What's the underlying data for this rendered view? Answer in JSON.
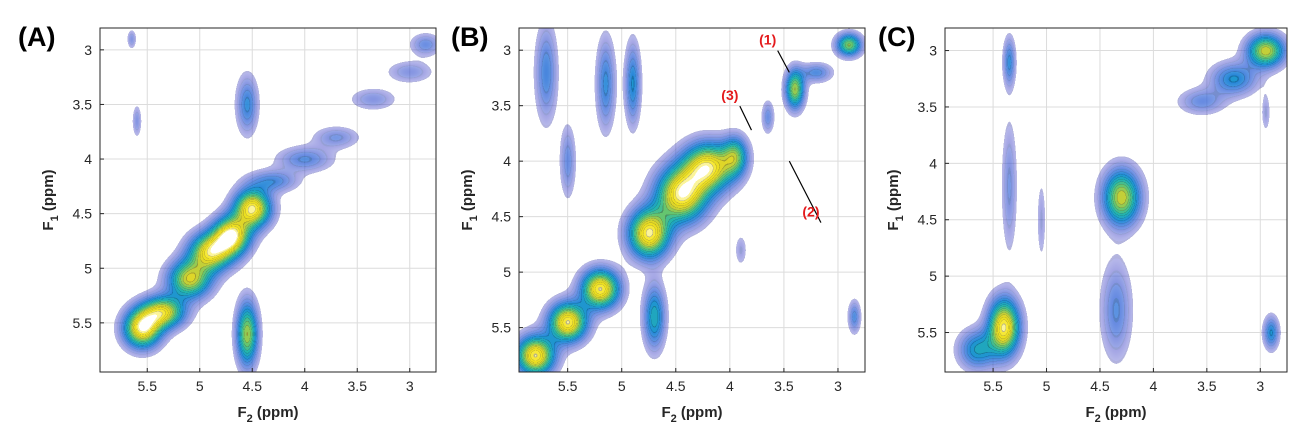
{
  "colors": {
    "ink": "#262626",
    "grid": "#dcdcdc",
    "annotation": "#e41a1c",
    "colormap": [
      "#3b3fc6",
      "#2a62d8",
      "#1f8fd6",
      "#20b3b0",
      "#6ac66b",
      "#d7d12c",
      "#f5e51b",
      "#ffffff"
    ]
  },
  "chart_data": [
    {
      "type": "heatmap",
      "panel_label": "(A)",
      "xlabel": "F2 (ppm)",
      "ylabel": "F1 (ppm)",
      "axis_symbol": "F",
      "axis_unit": "(ppm)",
      "x_subscript": "2",
      "y_subscript": "1",
      "xlim": [
        5.95,
        2.75
      ],
      "ylim": [
        2.8,
        5.95
      ],
      "x_reversed": true,
      "y_reversed": true,
      "xticks": [
        5.5,
        5,
        4.5,
        4,
        3.5,
        3
      ],
      "xtick_labels": [
        "5.5",
        "5",
        "4.5",
        "4",
        "3.5",
        "3"
      ],
      "yticks": [
        3,
        3.5,
        4,
        4.5,
        5,
        5.5
      ],
      "ytick_labels": [
        "3",
        "3.5",
        "4",
        "4.5",
        "5",
        "5.5"
      ],
      "grid": true,
      "peaks": [
        {
          "x": 5.55,
          "y": 5.55,
          "sx": 0.12,
          "sy": 0.12,
          "a": 1.0
        },
        {
          "x": 5.35,
          "y": 5.4,
          "sx": 0.14,
          "sy": 0.1,
          "a": 0.85
        },
        {
          "x": 5.1,
          "y": 5.1,
          "sx": 0.14,
          "sy": 0.12,
          "a": 0.8
        },
        {
          "x": 4.9,
          "y": 4.85,
          "sx": 0.14,
          "sy": 0.12,
          "a": 0.9
        },
        {
          "x": 4.7,
          "y": 4.7,
          "sx": 0.12,
          "sy": 0.12,
          "a": 1.0
        },
        {
          "x": 4.5,
          "y": 4.45,
          "sx": 0.12,
          "sy": 0.12,
          "a": 1.0
        },
        {
          "x": 4.55,
          "y": 5.6,
          "sx": 0.07,
          "sy": 0.2,
          "a": 0.75
        },
        {
          "x": 4.55,
          "y": 3.5,
          "sx": 0.07,
          "sy": 0.18,
          "a": 0.35
        },
        {
          "x": 4.3,
          "y": 4.2,
          "sx": 0.16,
          "sy": 0.07,
          "a": 0.3
        },
        {
          "x": 4.0,
          "y": 4.0,
          "sx": 0.18,
          "sy": 0.08,
          "a": 0.28
        },
        {
          "x": 3.7,
          "y": 3.8,
          "sx": 0.15,
          "sy": 0.07,
          "a": 0.22
        },
        {
          "x": 3.35,
          "y": 3.45,
          "sx": 0.15,
          "sy": 0.07,
          "a": 0.2
        },
        {
          "x": 3.0,
          "y": 3.2,
          "sx": 0.15,
          "sy": 0.07,
          "a": 0.2
        },
        {
          "x": 2.85,
          "y": 2.95,
          "sx": 0.1,
          "sy": 0.07,
          "a": 0.25
        },
        {
          "x": 5.6,
          "y": 3.65,
          "sx": 0.03,
          "sy": 0.1,
          "a": 0.2
        },
        {
          "x": 5.65,
          "y": 2.9,
          "sx": 0.03,
          "sy": 0.06,
          "a": 0.2
        }
      ]
    },
    {
      "type": "heatmap",
      "panel_label": "(B)",
      "xlabel": "F2 (ppm)",
      "ylabel": "F1 (ppm)",
      "axis_symbol": "F",
      "axis_unit": "(ppm)",
      "x_subscript": "2",
      "y_subscript": "1",
      "xlim": [
        5.95,
        2.75
      ],
      "ylim": [
        2.8,
        5.9
      ],
      "x_reversed": true,
      "y_reversed": true,
      "xticks": [
        5.5,
        5,
        4.5,
        4,
        3.5,
        3
      ],
      "xtick_labels": [
        "5.5",
        "5",
        "4.5",
        "4",
        "3.5",
        "3"
      ],
      "yticks": [
        3,
        3.5,
        4,
        4.5,
        5,
        5.5
      ],
      "ytick_labels": [
        "3",
        "3.5",
        "4",
        "4.5",
        "5",
        "5.5"
      ],
      "grid": true,
      "annotations": [
        {
          "text": "(1)",
          "tx": 3.65,
          "ty": 2.95,
          "ax": 3.45,
          "ay": 3.2
        },
        {
          "text": "(3)",
          "tx": 4.0,
          "ty": 3.45,
          "ax": 3.8,
          "ay": 3.72
        },
        {
          "text": "(2)",
          "tx": 3.25,
          "ty": 4.5,
          "ax": 3.45,
          "ay": 4.0
        }
      ],
      "peaks": [
        {
          "x": 5.8,
          "y": 5.75,
          "sx": 0.12,
          "sy": 0.12,
          "a": 1.0
        },
        {
          "x": 5.5,
          "y": 5.45,
          "sx": 0.12,
          "sy": 0.12,
          "a": 1.0
        },
        {
          "x": 5.2,
          "y": 5.15,
          "sx": 0.12,
          "sy": 0.12,
          "a": 1.0
        },
        {
          "x": 4.75,
          "y": 4.65,
          "sx": 0.13,
          "sy": 0.15,
          "a": 1.0
        },
        {
          "x": 4.45,
          "y": 4.3,
          "sx": 0.16,
          "sy": 0.17,
          "a": 1.0
        },
        {
          "x": 4.2,
          "y": 4.05,
          "sx": 0.16,
          "sy": 0.15,
          "a": 0.95
        },
        {
          "x": 3.95,
          "y": 3.95,
          "sx": 0.08,
          "sy": 0.12,
          "a": 0.55
        },
        {
          "x": 5.7,
          "y": 3.2,
          "sx": 0.07,
          "sy": 0.3,
          "a": 0.32
        },
        {
          "x": 5.15,
          "y": 3.3,
          "sx": 0.06,
          "sy": 0.28,
          "a": 0.35
        },
        {
          "x": 4.9,
          "y": 3.3,
          "sx": 0.05,
          "sy": 0.25,
          "a": 0.4
        },
        {
          "x": 4.7,
          "y": 5.4,
          "sx": 0.07,
          "sy": 0.2,
          "a": 0.5
        },
        {
          "x": 5.5,
          "y": 4.0,
          "sx": 0.05,
          "sy": 0.22,
          "a": 0.25
        },
        {
          "x": 3.4,
          "y": 3.35,
          "sx": 0.06,
          "sy": 0.12,
          "a": 0.75
        },
        {
          "x": 3.2,
          "y": 3.2,
          "sx": 0.1,
          "sy": 0.06,
          "a": 0.3
        },
        {
          "x": 2.9,
          "y": 2.95,
          "sx": 0.08,
          "sy": 0.07,
          "a": 0.7
        },
        {
          "x": 3.65,
          "y": 3.6,
          "sx": 0.04,
          "sy": 0.1,
          "a": 0.25
        },
        {
          "x": 2.85,
          "y": 5.4,
          "sx": 0.04,
          "sy": 0.1,
          "a": 0.3
        },
        {
          "x": 3.9,
          "y": 4.8,
          "sx": 0.04,
          "sy": 0.1,
          "a": 0.15
        }
      ]
    },
    {
      "type": "heatmap",
      "panel_label": "(C)",
      "xlabel": "F2 (ppm)",
      "ylabel": "F1 (ppm)",
      "axis_symbol": "F",
      "axis_unit": "(ppm)",
      "x_subscript": "2",
      "y_subscript": "1",
      "xlim": [
        5.95,
        2.75
      ],
      "ylim": [
        2.8,
        5.85
      ],
      "x_reversed": true,
      "y_reversed": true,
      "xticks": [
        5.5,
        5,
        4.5,
        4,
        3.5,
        3
      ],
      "xtick_labels": [
        "5.5",
        "5",
        "4.5",
        "4",
        "3.5",
        "3"
      ],
      "yticks": [
        3,
        3.5,
        4,
        4.5,
        5,
        5.5
      ],
      "ytick_labels": [
        "3",
        "3.5",
        "4",
        "4.5",
        "5",
        "5.5"
      ],
      "grid": true,
      "peaks": [
        {
          "x": 5.4,
          "y": 5.45,
          "sx": 0.1,
          "sy": 0.17,
          "a": 1.0
        },
        {
          "x": 5.65,
          "y": 5.65,
          "sx": 0.12,
          "sy": 0.12,
          "a": 0.45
        },
        {
          "x": 4.3,
          "y": 4.3,
          "sx": 0.12,
          "sy": 0.17,
          "a": 0.8
        },
        {
          "x": 4.35,
          "y": 5.3,
          "sx": 0.1,
          "sy": 0.3,
          "a": 0.28
        },
        {
          "x": 5.35,
          "y": 3.1,
          "sx": 0.04,
          "sy": 0.15,
          "a": 0.35
        },
        {
          "x": 5.35,
          "y": 4.2,
          "sx": 0.05,
          "sy": 0.4,
          "a": 0.22
        },
        {
          "x": 5.05,
          "y": 4.5,
          "sx": 0.03,
          "sy": 0.25,
          "a": 0.15
        },
        {
          "x": 2.95,
          "y": 3.0,
          "sx": 0.12,
          "sy": 0.1,
          "a": 0.8
        },
        {
          "x": 3.25,
          "y": 3.25,
          "sx": 0.15,
          "sy": 0.1,
          "a": 0.4
        },
        {
          "x": 3.55,
          "y": 3.45,
          "sx": 0.15,
          "sy": 0.08,
          "a": 0.25
        },
        {
          "x": 2.9,
          "y": 5.5,
          "sx": 0.05,
          "sy": 0.1,
          "a": 0.4
        },
        {
          "x": 2.95,
          "y": 3.55,
          "sx": 0.03,
          "sy": 0.12,
          "a": 0.15
        }
      ]
    }
  ]
}
